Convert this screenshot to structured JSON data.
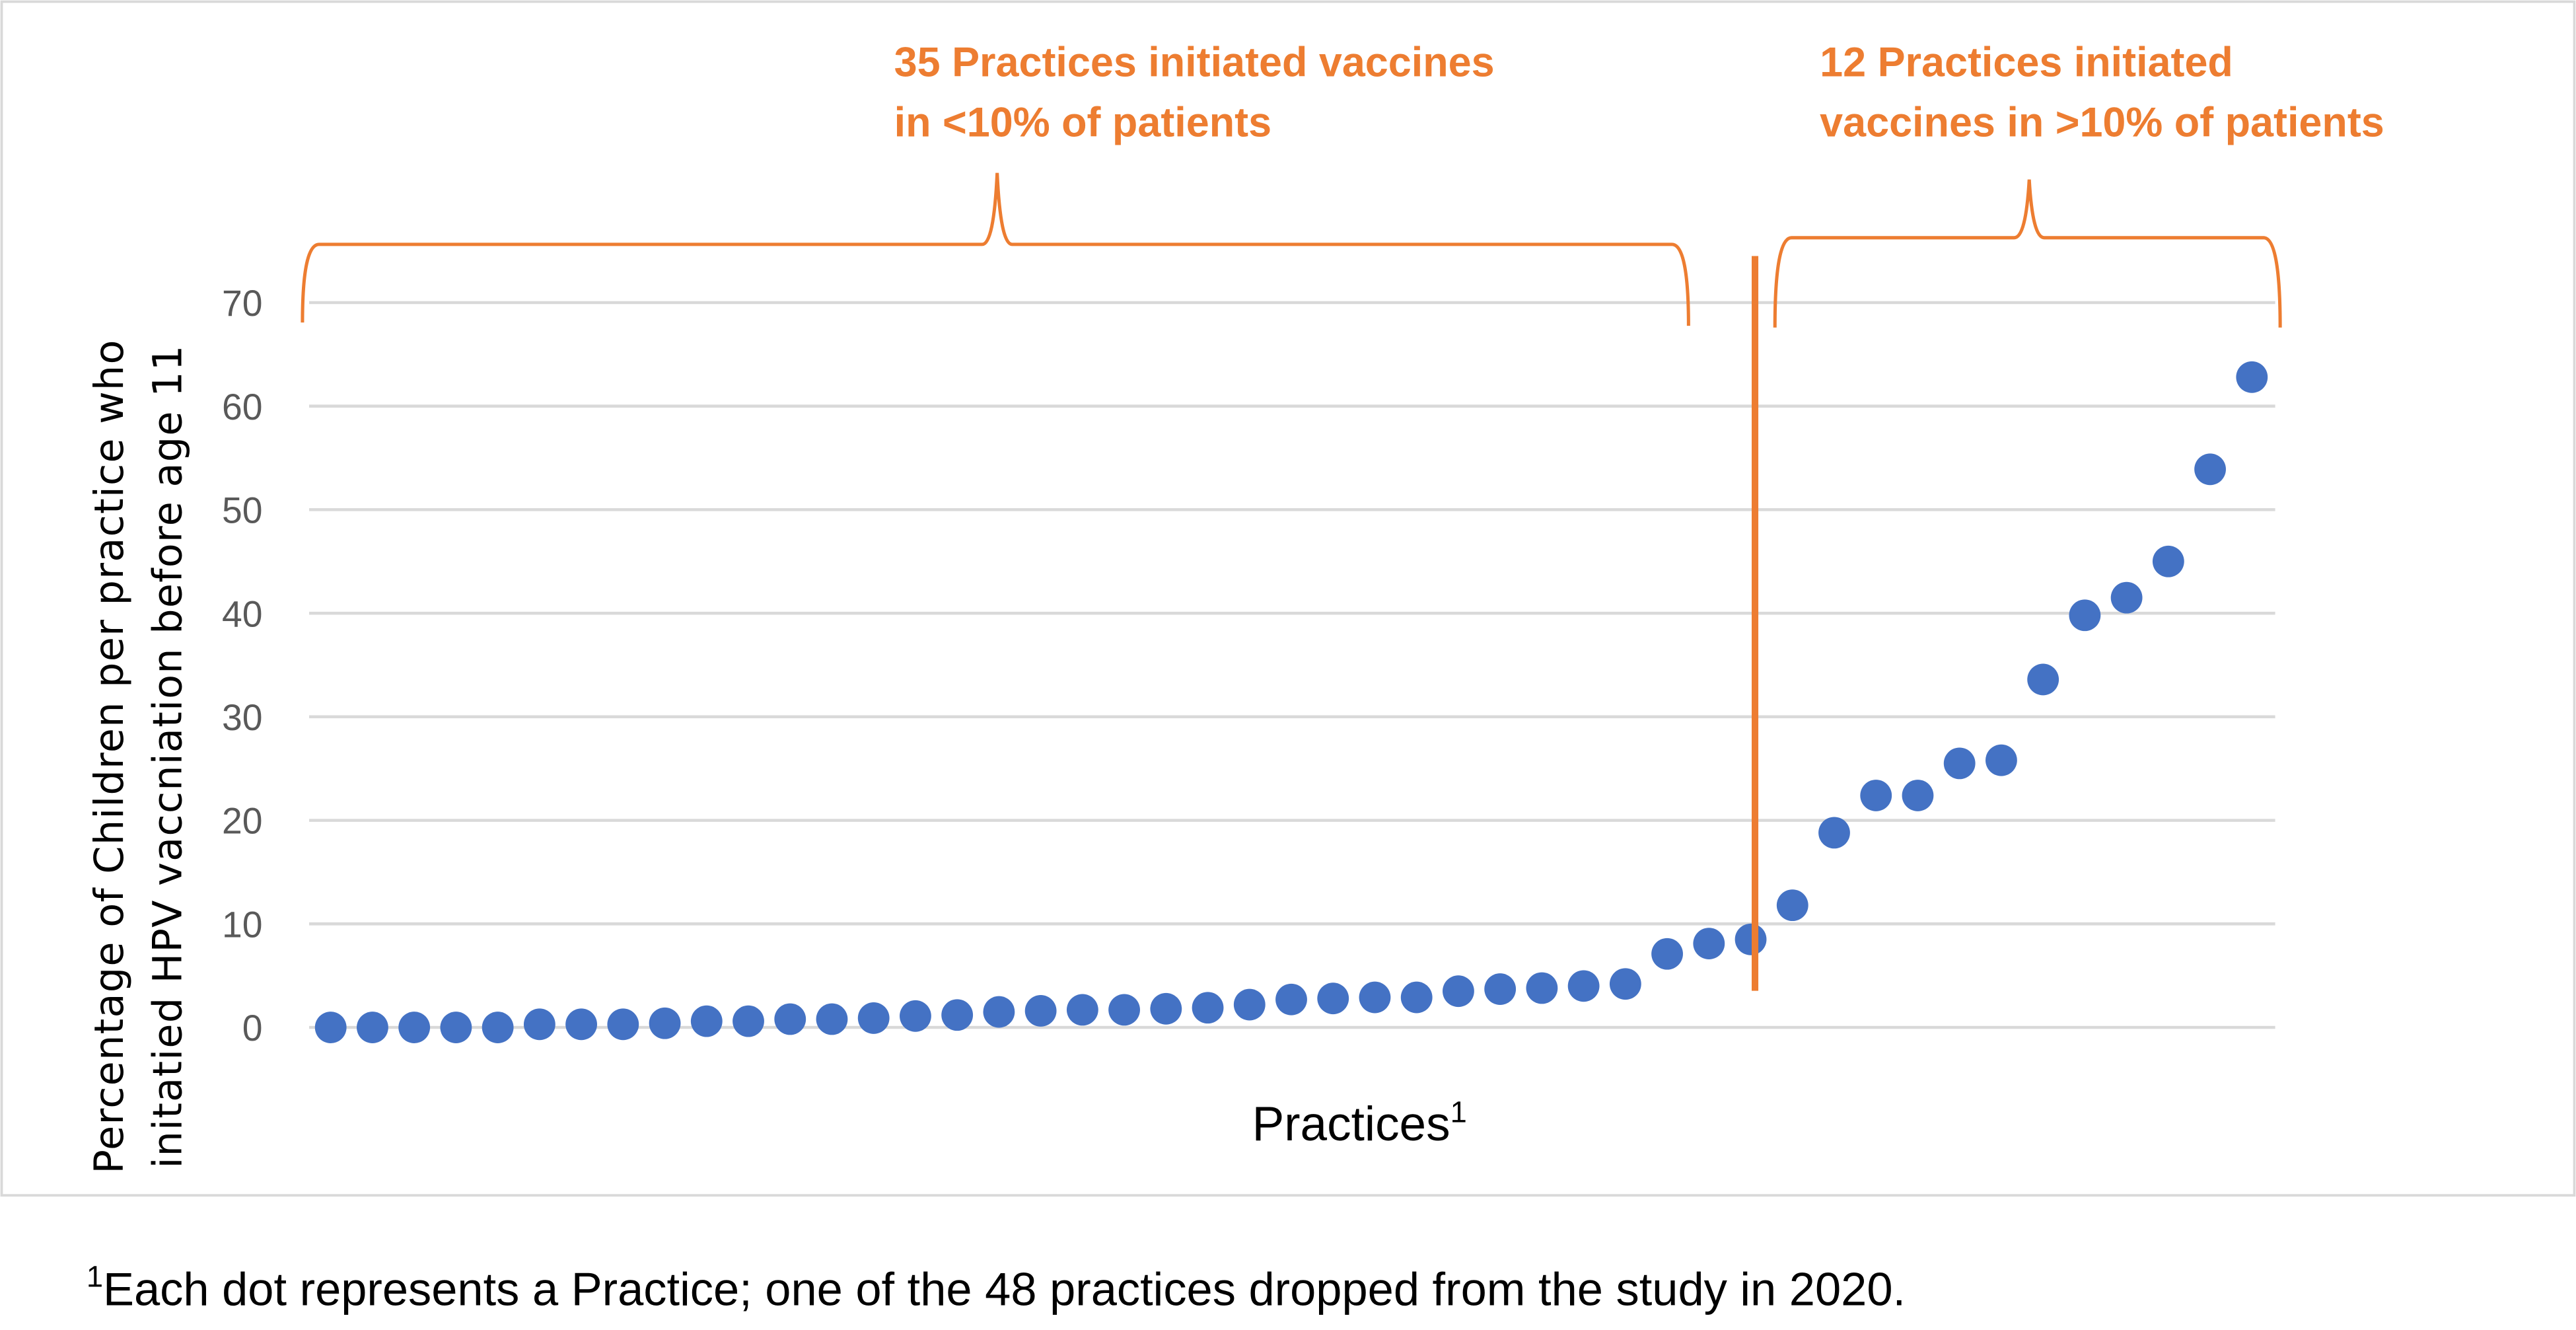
{
  "chart_data": {
    "type": "scatter",
    "title": "",
    "xlabel": "Practices",
    "xlabel_superscript": "1",
    "ylabel_line1": "Percentage of Children per practice  who",
    "ylabel_line2": "initatied HPV vaccniation before age 11",
    "ylim": [
      0,
      70
    ],
    "yticks": [
      0,
      10,
      20,
      30,
      40,
      50,
      60,
      70
    ],
    "grid": true,
    "legend": "none",
    "series": [
      {
        "name": "Practices",
        "color": "#4472C4",
        "values": [
          0,
          0,
          0,
          0,
          0,
          0.3,
          0.3,
          0.3,
          0.4,
          0.6,
          0.6,
          0.8,
          0.8,
          0.9,
          1.1,
          1.2,
          1.5,
          1.6,
          1.7,
          1.7,
          1.8,
          1.9,
          2.2,
          2.7,
          2.8,
          2.9,
          2.9,
          3.5,
          3.7,
          3.8,
          4.0,
          4.2,
          7.1,
          8.1,
          8.5,
          11.8,
          18.8,
          22.4,
          22.4,
          25.5,
          25.8,
          33.6,
          39.8,
          41.5,
          45.0,
          53.9,
          62.8
        ]
      }
    ],
    "annotations": [
      {
        "group": "low",
        "count": 35,
        "line1": "35 Practices initiated vaccines",
        "line2": "in <10% of patients"
      },
      {
        "group": "high",
        "count": 12,
        "line1": "12 Practices initiated",
        "line2": "vaccines in >10% of patients"
      }
    ],
    "annotation_color": "#ED7D31",
    "footnote_mark": "1",
    "footnote": "Each dot represents a Practice; one of the 48 practices dropped from the study in 2020."
  }
}
